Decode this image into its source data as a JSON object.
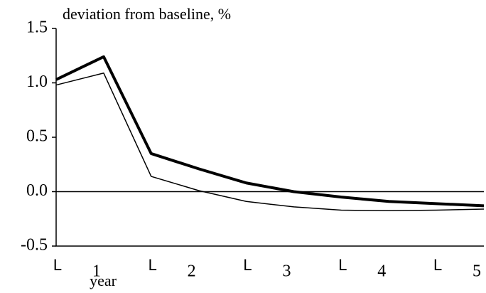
{
  "chart_data": {
    "type": "line",
    "y_label": "deviation from baseline, %",
    "x_label": "year",
    "x": [
      0,
      0.5,
      1,
      1.5,
      2,
      2.5,
      3,
      3.5,
      4,
      4.5
    ],
    "series": [
      {
        "color": "#000000",
        "width": 4,
        "values": [
          1.03,
          1.24,
          0.35,
          0.21,
          0.08,
          0.0,
          -0.05,
          -0.09,
          -0.11,
          -0.13
        ]
      },
      {
        "color": "#000000",
        "width": 1.5,
        "values": [
          0.98,
          1.09,
          0.14,
          0.01,
          -0.09,
          -0.14,
          -0.17,
          -0.175,
          -0.17,
          -0.16
        ]
      }
    ],
    "xlim": [
      0,
      4.5
    ],
    "ylim": [
      -0.5,
      1.5
    ],
    "yticks": [
      {
        "value": 1.5,
        "label": "1.5"
      },
      {
        "value": 1.0,
        "label": "1.0"
      },
      {
        "value": 0.5,
        "label": "0.5"
      },
      {
        "value": 0.0,
        "label": "0.0"
      },
      {
        "value": -0.5,
        "label": "-0.5"
      }
    ],
    "xticks": [
      {
        "value": 0.5,
        "label": "1"
      },
      {
        "value": 1.5,
        "label": "2"
      },
      {
        "value": 2.5,
        "label": "3"
      },
      {
        "value": 3.5,
        "label": "4"
      },
      {
        "value": 4.5,
        "label": "5"
      }
    ],
    "x_minor_ticks": [
      {
        "value": 0,
        "label": "L"
      },
      {
        "value": 1,
        "label": "L"
      },
      {
        "value": 2,
        "label": "L"
      },
      {
        "value": 3,
        "label": "L"
      },
      {
        "value": 4,
        "label": "L"
      }
    ],
    "zero_line": 0
  }
}
